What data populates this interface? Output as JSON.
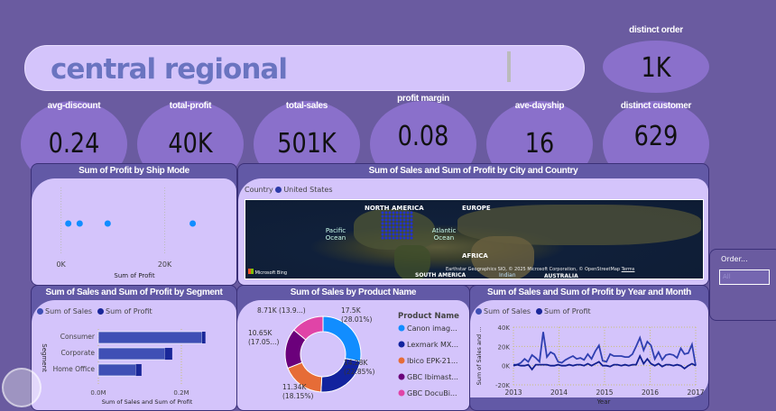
{
  "title": "central regional",
  "kpis": [
    {
      "label": "avg-discount",
      "value": "0.24"
    },
    {
      "label": "total-profit",
      "value": "40K"
    },
    {
      "label": "total-sales",
      "value": "501K"
    },
    {
      "label": "profit margin",
      "value": "0.08"
    },
    {
      "label": "ave-dayship",
      "value": "16"
    },
    {
      "label": "distinct customer",
      "value": "629"
    },
    {
      "label": "distinct order",
      "value": "1K"
    }
  ],
  "colors": {
    "background": "#6a5ba0",
    "panel": "#d4c4fb",
    "kpi": "#8a70cb",
    "sales": "#3f4fb5",
    "profit": "#1a2799"
  },
  "ship_mode": {
    "title": "Sum of Profit by Ship Mode",
    "xlabel": "Sum of Profit",
    "ticks": [
      "0K",
      "20K"
    ],
    "chart_data": {
      "type": "scatter",
      "x": [
        1.4,
        3.6,
        9.0,
        25.4
      ],
      "xunit": "K",
      "xlim": [
        -1.5,
        30
      ]
    }
  },
  "map": {
    "title": "Sum of Sales and Sum of Profit by City and Country",
    "legend_title": "Country",
    "legend_item": "United States",
    "labels": {
      "na": "NORTH AMERICA",
      "europe": "EUROPE",
      "pacific": "Pacific Ocean",
      "atlantic": "Atlantic Ocean",
      "africa": "AFRICA",
      "sa": "SOUTH AMERICA",
      "australia": "AUSTRALIA",
      "indian": "Indian",
      "bing": "Microsoft Bing",
      "copyright": "Earthstar Geographics SIO, © 2025 Microsoft Corporation, © OpenStreetMap",
      "terms": "Terms"
    }
  },
  "slicer": {
    "label": "Order...",
    "value": "All"
  },
  "segment": {
    "title": "Sum of Sales and Sum of Profit by Segment",
    "legend": [
      "Sum of Sales",
      "Sum of Profit"
    ],
    "ylabel": "Segment",
    "xlabel": "Sum of Sales and Sum of Profit",
    "ticks": [
      "0.0M",
      "0.2M"
    ],
    "chart_data": {
      "type": "bar",
      "categories": [
        "Consumer",
        "Corporate",
        "Home Office"
      ],
      "series": [
        {
          "name": "Sum of Sales",
          "values": [
            0.25,
            0.16,
            0.09
          ]
        },
        {
          "name": "Sum of Profit",
          "values": [
            0.008,
            0.018,
            0.014
          ]
        }
      ],
      "unit": "M",
      "xlim": [
        0,
        0.3
      ]
    }
  },
  "product": {
    "title": "Sum of Sales by Product Name",
    "legend_title": "Product Name",
    "chart_data": {
      "type": "pie",
      "categories": [
        "Canon imag...",
        "Lexmark MX...",
        "Ibico EPK-21...",
        "GBC Ibimast...",
        "GBC DocuBi..."
      ],
      "values": [
        17.5,
        14.28,
        11.34,
        10.65,
        8.71
      ],
      "labels": [
        [
          "17.5K",
          "(28.01%)"
        ],
        [
          "14.28K",
          "(22.85%)"
        ],
        [
          "11.34K",
          "(18.15%)"
        ],
        [
          "10.65K",
          "(17.05...)"
        ],
        [
          "8.71K (13.9...)",
          ""
        ]
      ],
      "colors": [
        "#118dff",
        "#12239e",
        "#e66c37",
        "#6b007b",
        "#e044a7"
      ]
    }
  },
  "year": {
    "title": "Sum of Sales and Sum of Profit by Year and Month",
    "legend": [
      "Sum of Sales",
      "Sum of Profit"
    ],
    "ylabel": "Sum of Sales and ...",
    "xlabel": "Year",
    "yticks": [
      "40K",
      "20K",
      "0K",
      "-20K"
    ],
    "xticks": [
      "2013",
      "2014",
      "2015",
      "2016",
      "2017"
    ],
    "chart_data": {
      "type": "line",
      "ylim": [
        -20,
        40
      ],
      "xlim": [
        2013,
        2017
      ],
      "series": [
        {
          "name": "Sum of Sales",
          "values": [
            1,
            1,
            3,
            7,
            4,
            11,
            8,
            4,
            35,
            9,
            14,
            12,
            4,
            3,
            6,
            8,
            10,
            7,
            8,
            6,
            12,
            7,
            15,
            21,
            5,
            4,
            12,
            10,
            10,
            10,
            9,
            9,
            12,
            20,
            29,
            16,
            25,
            21,
            7,
            14,
            6,
            11,
            12,
            11,
            8,
            18,
            12,
            13,
            22,
            0
          ]
        },
        {
          "name": "Sum of Profit",
          "values": [
            0,
            1,
            0,
            0,
            1,
            -4,
            1,
            1,
            1,
            1,
            0,
            0,
            1,
            0,
            0,
            1,
            0,
            1,
            1,
            0,
            2,
            0,
            2,
            4,
            0,
            0,
            -1,
            1,
            1,
            0,
            1,
            0,
            1,
            1,
            10,
            2,
            7,
            2,
            0,
            2,
            -1,
            1,
            1,
            0,
            1,
            0,
            -3,
            0,
            2,
            0
          ]
        }
      ]
    }
  }
}
